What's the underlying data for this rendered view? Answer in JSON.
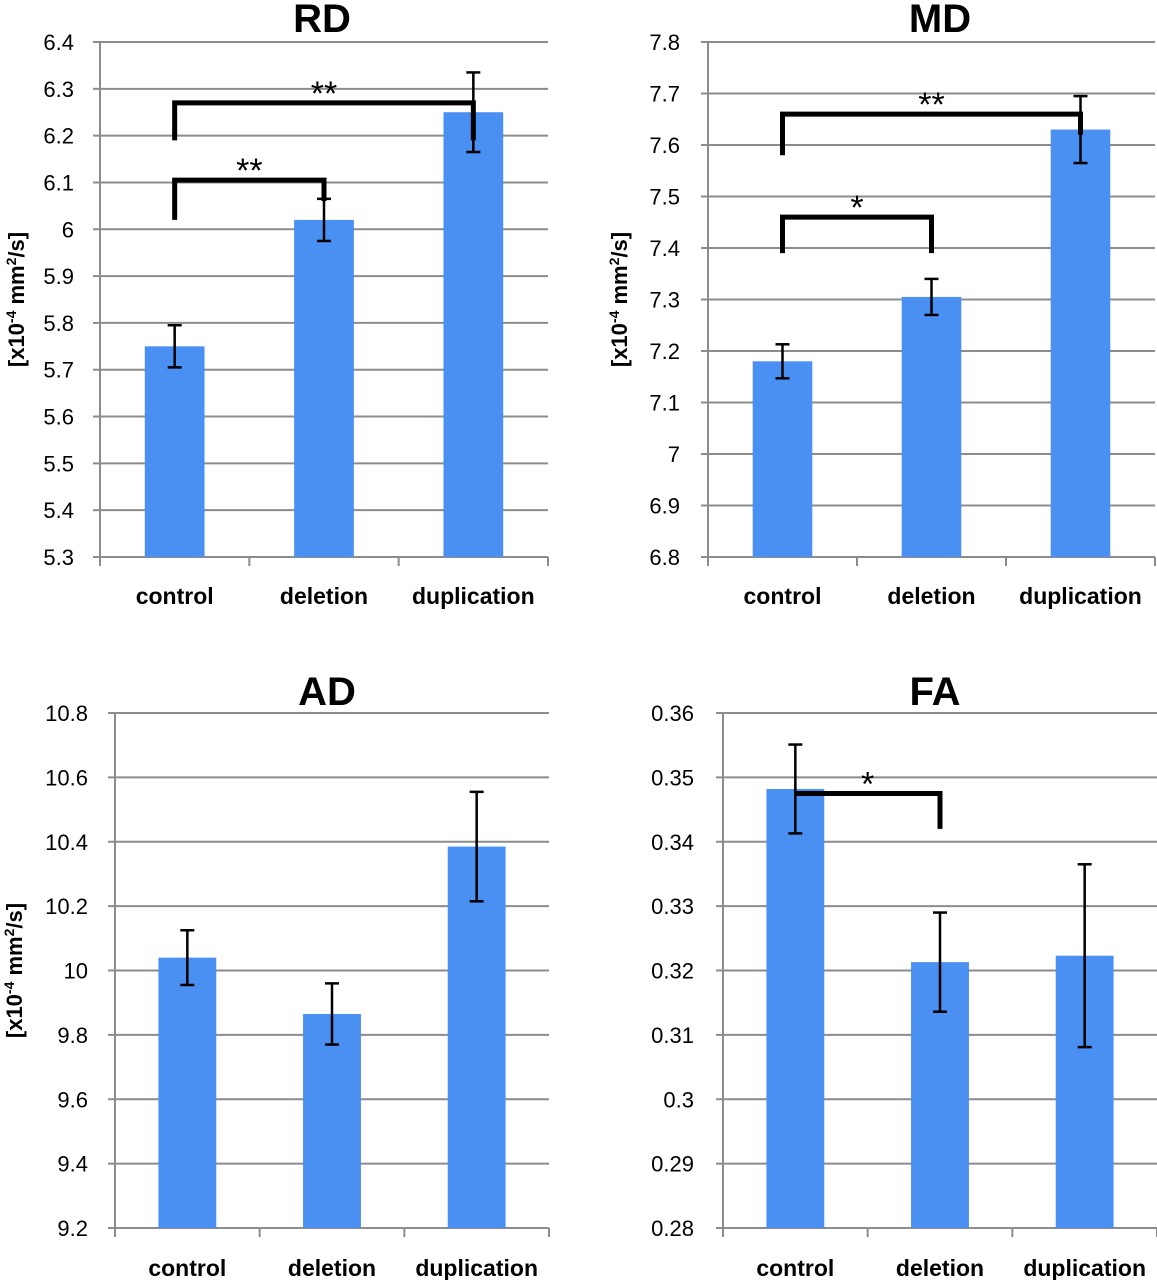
{
  "colors": {
    "bar": "#4a8ff2",
    "grid": "#8c8c8c",
    "axis": "#8c8c8c",
    "ink": "#000000"
  },
  "chart_data": [
    {
      "type": "bar",
      "title": "RD",
      "ylabel": {
        "prefix": "[x10",
        "exp1": "-4",
        "mid": " mm",
        "exp2": "2",
        "suffix": "/s]"
      },
      "categories": [
        "control",
        "deletion",
        "duplication"
      ],
      "values": [
        5.75,
        6.02,
        6.25
      ],
      "errors": [
        0.045,
        0.045,
        0.085
      ],
      "ylim": [
        5.3,
        6.4
      ],
      "yticks": [
        5.3,
        5.4,
        5.5,
        5.6,
        5.7,
        5.8,
        5.9,
        6.0,
        6.1,
        6.2,
        6.3,
        6.4
      ],
      "ytick_labels": [
        "5.3",
        "5.4",
        "5.5",
        "5.6",
        "5.7",
        "5.8",
        "5.9",
        "6",
        "6.1",
        "6.2",
        "6.3",
        "6.4"
      ],
      "grid": true,
      "significance": [
        {
          "from": 0,
          "to": 2,
          "level": 6.27,
          "left_end": 6.19,
          "right_end": 6.19,
          "label": "**"
        },
        {
          "from": 0,
          "to": 1,
          "level": 6.105,
          "left_end": 6.02,
          "right_end": 6.06,
          "label": "**"
        }
      ]
    },
    {
      "type": "bar",
      "title": "MD",
      "ylabel": {
        "prefix": "[x10",
        "exp1": "-4",
        "mid": " mm",
        "exp2": "2",
        "suffix": "/s]"
      },
      "categories": [
        "control",
        "deletion",
        "duplication"
      ],
      "values": [
        7.18,
        7.305,
        7.63
      ],
      "errors": [
        0.033,
        0.035,
        0.065
      ],
      "ylim": [
        6.8,
        7.8
      ],
      "yticks": [
        6.8,
        6.9,
        7.0,
        7.1,
        7.2,
        7.3,
        7.4,
        7.5,
        7.6,
        7.7,
        7.8
      ],
      "ytick_labels": [
        "6.8",
        "6.9",
        "7",
        "7.1",
        "7.2",
        "7.3",
        "7.4",
        "7.5",
        "7.6",
        "7.7",
        "7.8"
      ],
      "grid": true,
      "significance": [
        {
          "from": 0,
          "to": 2,
          "level": 7.66,
          "left_end": 7.58,
          "right_end": 7.62,
          "label": "**"
        },
        {
          "from": 0,
          "to": 1,
          "level": 7.46,
          "left_end": 7.39,
          "right_end": 7.39,
          "label": "*"
        }
      ]
    },
    {
      "type": "bar",
      "title": "AD",
      "ylabel": {
        "prefix": "[x10",
        "exp1": "-4",
        "mid": " mm",
        "exp2": "2",
        "suffix": "/s]"
      },
      "categories": [
        "control",
        "deletion",
        "duplication"
      ],
      "values": [
        10.04,
        9.865,
        10.385
      ],
      "errors": [
        0.085,
        0.095,
        0.17
      ],
      "ylim": [
        9.2,
        10.8
      ],
      "yticks": [
        9.2,
        9.4,
        9.6,
        9.8,
        10.0,
        10.2,
        10.4,
        10.6,
        10.8
      ],
      "ytick_labels": [
        "9.2",
        "9.4",
        "9.6",
        "9.8",
        "10",
        "10.2",
        "10.4",
        "10.6",
        "10.8"
      ],
      "grid": true,
      "significance": []
    },
    {
      "type": "bar",
      "title": "FA",
      "ylabel": null,
      "categories": [
        "control",
        "deletion",
        "duplication"
      ],
      "values": [
        0.3482,
        0.3213,
        0.3223
      ],
      "errors": [
        0.0069,
        0.0077,
        0.0142
      ],
      "ylim": [
        0.28,
        0.36
      ],
      "yticks": [
        0.28,
        0.29,
        0.3,
        0.31,
        0.32,
        0.33,
        0.34,
        0.35,
        0.36
      ],
      "ytick_labels": [
        "0.28",
        "0.29",
        "0.3",
        "0.31",
        "0.32",
        "0.33",
        "0.34",
        "0.35",
        "0.36"
      ],
      "grid": true,
      "significance": [
        {
          "from": 0,
          "to": 1,
          "level": 0.3475,
          "left_end": 0.3475,
          "right_end": 0.342,
          "label": "*"
        }
      ]
    }
  ]
}
